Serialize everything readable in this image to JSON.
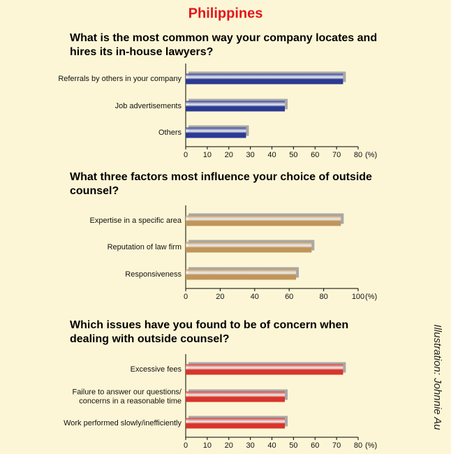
{
  "title": "Philippines",
  "credit": "Illustration: Johnnie Au",
  "chart_data": [
    {
      "type": "bar",
      "orientation": "horizontal",
      "title": "What is the most common way your company locates and hires its in-house lawyers?",
      "categories": [
        "Referrals by others in your company",
        "Job advertisements",
        "Others"
      ],
      "values": [
        73,
        46,
        28
      ],
      "color": "#2b3a92",
      "xlim": [
        0,
        80
      ],
      "xticks": [
        0,
        10,
        20,
        30,
        40,
        50,
        60,
        70,
        80
      ],
      "x_label": "(%)"
    },
    {
      "type": "bar",
      "orientation": "horizontal",
      "title": "What three factors most influence your choice of outside counsel?",
      "categories": [
        "Expertise in a specific area",
        "Reputation of law firm",
        "Responsiveness"
      ],
      "values": [
        90,
        73,
        64
      ],
      "color": "#c0955a",
      "xlim": [
        0,
        100
      ],
      "xticks": [
        0,
        20,
        40,
        60,
        80,
        100
      ],
      "x_label": "(%)"
    },
    {
      "type": "bar",
      "orientation": "horizontal",
      "title": "Which issues have you found to be of concern when dealing with outside counsel?",
      "categories": [
        "Excessive fees",
        "Failure to answer our questions/\nconcerns in a reasonable time",
        "Work performed slowly/inefficiently"
      ],
      "values": [
        73,
        46,
        46
      ],
      "color": "#d8352c",
      "xlim": [
        0,
        80
      ],
      "xticks": [
        0,
        10,
        20,
        30,
        40,
        50,
        60,
        70,
        80
      ],
      "x_label": "(%)"
    }
  ]
}
